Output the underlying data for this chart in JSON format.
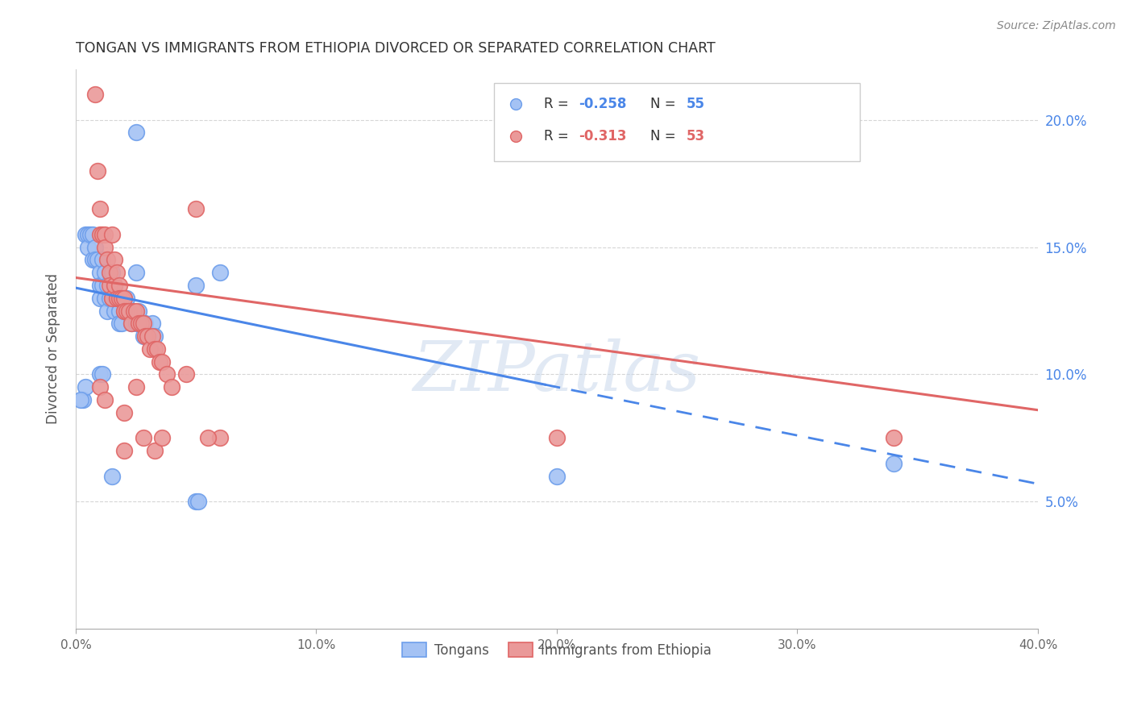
{
  "title": "TONGAN VS IMMIGRANTS FROM ETHIOPIA DIVORCED OR SEPARATED CORRELATION CHART",
  "source": "Source: ZipAtlas.com",
  "ylabel": "Divorced or Separated",
  "watermark": "ZIPatlas",
  "xmin": 0.0,
  "xmax": 0.4,
  "ymin": 0.0,
  "ymax": 0.22,
  "legend_blue_label": "Tongans",
  "legend_pink_label": "Immigrants from Ethiopia",
  "blue_color": "#a4c2f4",
  "pink_color": "#ea9999",
  "blue_edge_color": "#6d9eeb",
  "pink_edge_color": "#e06666",
  "blue_line_color": "#4a86e8",
  "pink_line_color": "#e06666",
  "blue_scatter": [
    [
      0.004,
      0.155
    ],
    [
      0.005,
      0.155
    ],
    [
      0.005,
      0.15
    ],
    [
      0.006,
      0.155
    ],
    [
      0.007,
      0.155
    ],
    [
      0.007,
      0.145
    ],
    [
      0.008,
      0.15
    ],
    [
      0.008,
      0.145
    ],
    [
      0.009,
      0.145
    ],
    [
      0.01,
      0.14
    ],
    [
      0.01,
      0.135
    ],
    [
      0.01,
      0.13
    ],
    [
      0.011,
      0.145
    ],
    [
      0.011,
      0.135
    ],
    [
      0.012,
      0.14
    ],
    [
      0.012,
      0.13
    ],
    [
      0.013,
      0.135
    ],
    [
      0.013,
      0.125
    ],
    [
      0.014,
      0.13
    ],
    [
      0.015,
      0.14
    ],
    [
      0.015,
      0.13
    ],
    [
      0.016,
      0.135
    ],
    [
      0.016,
      0.125
    ],
    [
      0.017,
      0.13
    ],
    [
      0.018,
      0.125
    ],
    [
      0.018,
      0.12
    ],
    [
      0.019,
      0.13
    ],
    [
      0.019,
      0.12
    ],
    [
      0.02,
      0.125
    ],
    [
      0.021,
      0.13
    ],
    [
      0.022,
      0.125
    ],
    [
      0.023,
      0.12
    ],
    [
      0.024,
      0.125
    ],
    [
      0.025,
      0.12
    ],
    [
      0.026,
      0.125
    ],
    [
      0.027,
      0.12
    ],
    [
      0.028,
      0.115
    ],
    [
      0.029,
      0.12
    ],
    [
      0.03,
      0.115
    ],
    [
      0.032,
      0.12
    ],
    [
      0.033,
      0.115
    ],
    [
      0.05,
      0.135
    ],
    [
      0.003,
      0.09
    ],
    [
      0.004,
      0.095
    ],
    [
      0.01,
      0.1
    ],
    [
      0.011,
      0.1
    ],
    [
      0.015,
      0.06
    ],
    [
      0.05,
      0.05
    ],
    [
      0.051,
      0.05
    ],
    [
      0.025,
      0.195
    ],
    [
      0.025,
      0.14
    ],
    [
      0.06,
      0.14
    ],
    [
      0.2,
      0.06
    ],
    [
      0.34,
      0.065
    ],
    [
      0.002,
      0.09
    ]
  ],
  "pink_scatter": [
    [
      0.008,
      0.21
    ],
    [
      0.009,
      0.18
    ],
    [
      0.01,
      0.165
    ],
    [
      0.01,
      0.155
    ],
    [
      0.011,
      0.155
    ],
    [
      0.012,
      0.155
    ],
    [
      0.012,
      0.15
    ],
    [
      0.013,
      0.145
    ],
    [
      0.014,
      0.14
    ],
    [
      0.014,
      0.135
    ],
    [
      0.015,
      0.13
    ],
    [
      0.015,
      0.155
    ],
    [
      0.016,
      0.145
    ],
    [
      0.016,
      0.135
    ],
    [
      0.017,
      0.14
    ],
    [
      0.017,
      0.13
    ],
    [
      0.018,
      0.135
    ],
    [
      0.018,
      0.13
    ],
    [
      0.019,
      0.13
    ],
    [
      0.02,
      0.13
    ],
    [
      0.02,
      0.125
    ],
    [
      0.021,
      0.125
    ],
    [
      0.022,
      0.125
    ],
    [
      0.023,
      0.12
    ],
    [
      0.024,
      0.125
    ],
    [
      0.025,
      0.125
    ],
    [
      0.026,
      0.12
    ],
    [
      0.027,
      0.12
    ],
    [
      0.028,
      0.12
    ],
    [
      0.029,
      0.115
    ],
    [
      0.03,
      0.115
    ],
    [
      0.031,
      0.11
    ],
    [
      0.032,
      0.115
    ],
    [
      0.033,
      0.11
    ],
    [
      0.034,
      0.11
    ],
    [
      0.035,
      0.105
    ],
    [
      0.036,
      0.105
    ],
    [
      0.038,
      0.1
    ],
    [
      0.04,
      0.095
    ],
    [
      0.046,
      0.1
    ],
    [
      0.05,
      0.165
    ],
    [
      0.01,
      0.095
    ],
    [
      0.012,
      0.09
    ],
    [
      0.02,
      0.07
    ],
    [
      0.028,
      0.075
    ],
    [
      0.033,
      0.07
    ],
    [
      0.036,
      0.075
    ],
    [
      0.06,
      0.075
    ],
    [
      0.2,
      0.075
    ],
    [
      0.34,
      0.075
    ],
    [
      0.02,
      0.085
    ],
    [
      0.025,
      0.095
    ],
    [
      0.055,
      0.075
    ]
  ],
  "blue_line_solid": [
    [
      0.0,
      0.134
    ],
    [
      0.195,
      0.096
    ]
  ],
  "blue_line_dashed": [
    [
      0.195,
      0.096
    ],
    [
      0.4,
      0.057
    ]
  ],
  "pink_line_solid": [
    [
      0.0,
      0.138
    ],
    [
      0.4,
      0.086
    ]
  ],
  "yticks": [
    0.05,
    0.1,
    0.15,
    0.2
  ],
  "ytick_labels": [
    "5.0%",
    "10.0%",
    "15.0%",
    "20.0%"
  ],
  "xticks": [
    0.0,
    0.1,
    0.2,
    0.3,
    0.4
  ],
  "xtick_labels": [
    "0.0%",
    "10.0%",
    "20.0%",
    "30.0%",
    "40.0%"
  ]
}
